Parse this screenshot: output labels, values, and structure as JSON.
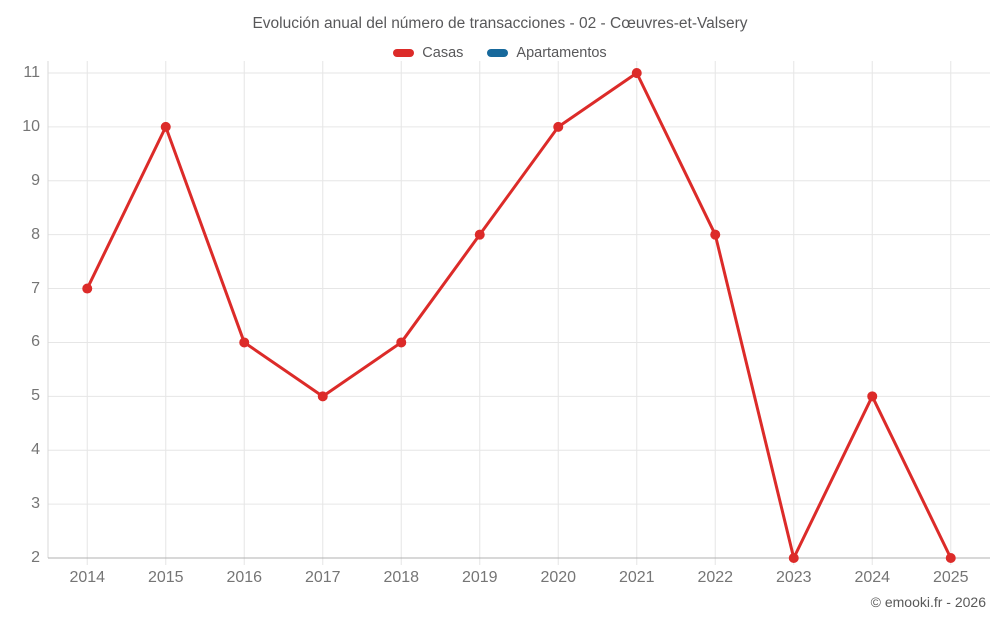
{
  "chart_data": {
    "type": "line",
    "title": "Evolución anual del número de transacciones - 02 - Cœuvres-et-Valsery",
    "categories": [
      "2014",
      "2015",
      "2016",
      "2017",
      "2018",
      "2019",
      "2020",
      "2021",
      "2022",
      "2023",
      "2024",
      "2025"
    ],
    "series": [
      {
        "name": "Casas",
        "color": "#dc2b29",
        "values": [
          7,
          10,
          6,
          5,
          6,
          8,
          10,
          11,
          8,
          2,
          5,
          2
        ]
      },
      {
        "name": "Apartamentos",
        "color": "#17699c",
        "values": []
      }
    ],
    "xlabel": "",
    "ylabel": "",
    "ylim": [
      2,
      11
    ],
    "yticks": [
      2,
      3,
      4,
      5,
      6,
      7,
      8,
      9,
      10,
      11
    ],
    "grid": true,
    "legend_position": "top"
  },
  "colors": {
    "grid_line": "#e6e6e6",
    "y_axis_line": "#d9d9d9",
    "x_axis_line": "#b0b0b0",
    "tick_label": "#757575",
    "title_text": "#58585a"
  },
  "footer": {
    "copyright": "© emooki.fr - 2026"
  }
}
